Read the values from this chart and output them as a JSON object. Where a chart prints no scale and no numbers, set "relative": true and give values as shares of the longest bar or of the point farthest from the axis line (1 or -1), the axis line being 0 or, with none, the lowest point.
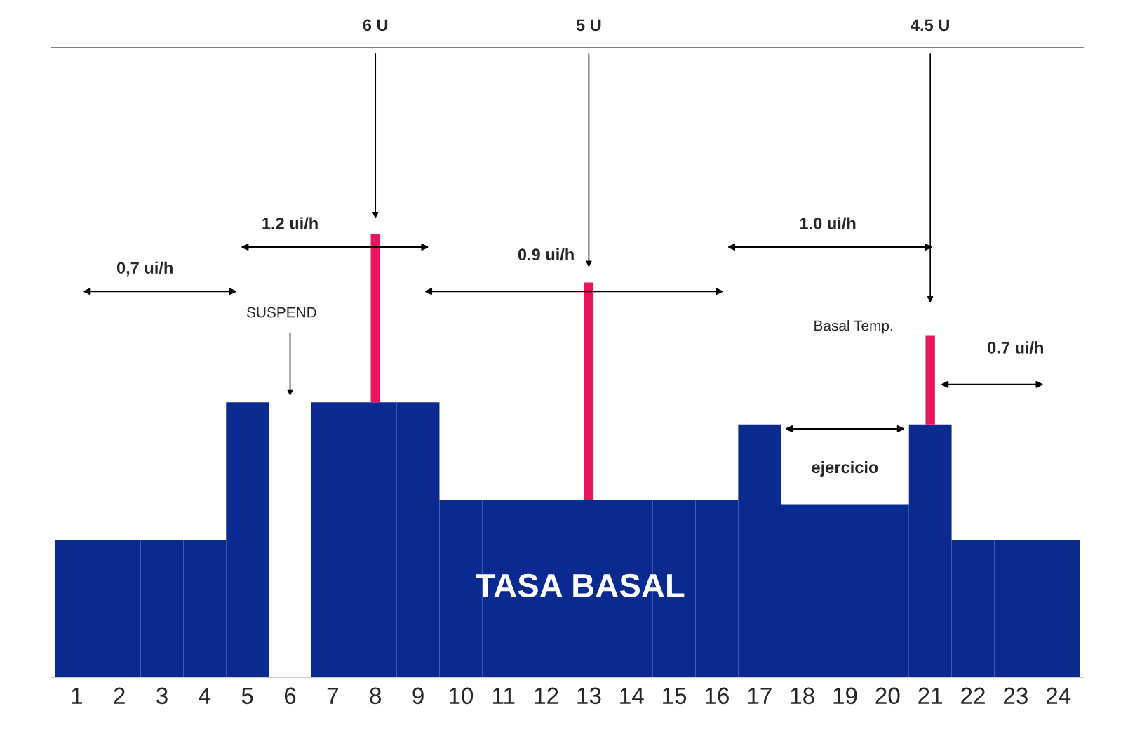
{
  "chart_data": {
    "type": "bar",
    "stacked": true,
    "relative": true,
    "categories": [
      "1",
      "2",
      "3",
      "4",
      "5",
      "6",
      "7",
      "8",
      "9",
      "10",
      "11",
      "12",
      "13",
      "14",
      "15",
      "16",
      "17",
      "18",
      "19",
      "20",
      "21",
      "22",
      "23",
      "24"
    ],
    "series": [
      {
        "color": "#0b2a8f",
        "values": [
          0.31,
          0.31,
          0.31,
          0.31,
          0.62,
          null,
          0.62,
          0.62,
          0.62,
          0.4,
          0.4,
          0.4,
          0.4,
          0.4,
          0.4,
          0.4,
          0.57,
          0.39,
          0.39,
          0.39,
          0.57,
          0.31,
          0.31,
          0.31
        ]
      },
      {
        "color": "#e8175d",
        "values": [
          null,
          null,
          null,
          null,
          null,
          null,
          null,
          0.38,
          null,
          null,
          null,
          null,
          0.49,
          null,
          null,
          null,
          null,
          null,
          null,
          null,
          0.2,
          null,
          null,
          null
        ]
      }
    ],
    "annotations": [
      "6 U",
      "5 U",
      "4.5 U",
      "0,7 ui/h",
      "1.2 ui/h",
      "0.9 ui/h",
      "1.0 ui/h",
      "0.7 ui/h",
      "SUSPEND",
      "Basal Temp.",
      "ejercicio",
      "TASA BASAL"
    ],
    "grid": false
  }
}
